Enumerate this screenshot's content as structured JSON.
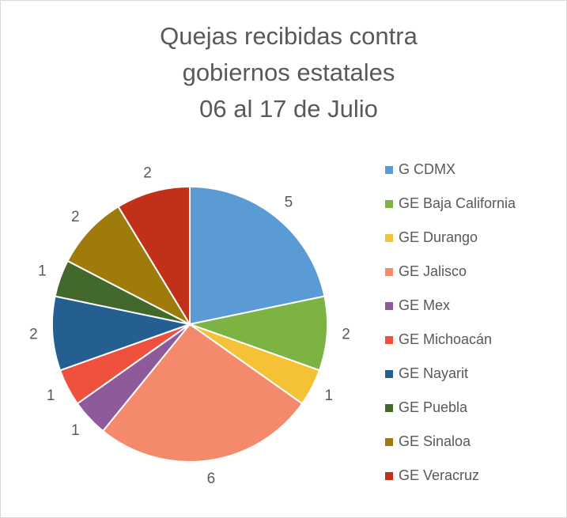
{
  "chart_data": {
    "type": "pie",
    "title": [
      "Quejas recibidas contra",
      "gobiernos estatales",
      "06 al 17 de Julio"
    ],
    "categories": [
      "G CDMX",
      "GE Baja California",
      "GE Durango",
      "GE Jalisco",
      "GE Mex",
      "GE Michoacán",
      "GE Nayarit",
      "GE Puebla",
      "GE Sinaloa",
      "GE Veracruz"
    ],
    "values": [
      5,
      2,
      1,
      6,
      1,
      1,
      2,
      1,
      2,
      2
    ],
    "colors": [
      "#5b9bd5",
      "#7cb342",
      "#f5c137",
      "#f4896b",
      "#8e5a9a",
      "#f0503e",
      "#255e91",
      "#43682b",
      "#9e7b0a",
      "#c1311a"
    ],
    "legend": "right"
  }
}
